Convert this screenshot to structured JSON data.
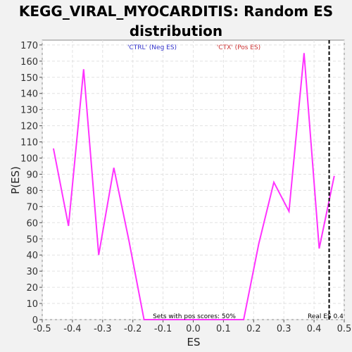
{
  "chart_data": {
    "type": "line",
    "title": "KEGG_VIRAL_MYOCARDITIS: Random ES distribution",
    "xlabel": "ES",
    "ylabel": "P(ES)",
    "xlim": [
      -0.5,
      0.5
    ],
    "ylim": [
      0,
      173
    ],
    "x_ticks": [
      "-0.5",
      "-0.4",
      "-0.3",
      "-0.2",
      "-0.1",
      "0.0",
      "0.1",
      "0.2",
      "0.3",
      "0.4",
      "0.5"
    ],
    "y_ticks": [
      "0",
      "10",
      "20",
      "30",
      "40",
      "50",
      "60",
      "70",
      "80",
      "90",
      "100",
      "110",
      "120",
      "130",
      "140",
      "150",
      "160",
      "170"
    ],
    "grid": true,
    "series": [
      {
        "color": "#ff33ff",
        "x": [
          -0.463,
          -0.413,
          -0.363,
          -0.313,
          -0.263,
          -0.213,
          -0.163,
          -0.113,
          -0.063,
          -0.013,
          0.037,
          0.087,
          0.137,
          0.167,
          0.217,
          0.267,
          0.317,
          0.367,
          0.417,
          0.467
        ],
        "y": [
          106,
          58,
          155,
          40,
          94,
          49,
          0,
          0,
          0,
          0,
          0,
          0,
          0,
          0,
          47,
          85,
          67,
          165,
          44,
          89
        ]
      }
    ],
    "legend": [
      {
        "label": "'CTRL' (Neg ES)",
        "color": "#3333cc"
      },
      {
        "label": "'CTX' (Pos ES)",
        "color": "#cc3333"
      }
    ],
    "legend_position": "top",
    "real_es": 0.45,
    "real_es_label": "Real ES 0.4",
    "annotation": "Sets with pos scores: 50%"
  }
}
